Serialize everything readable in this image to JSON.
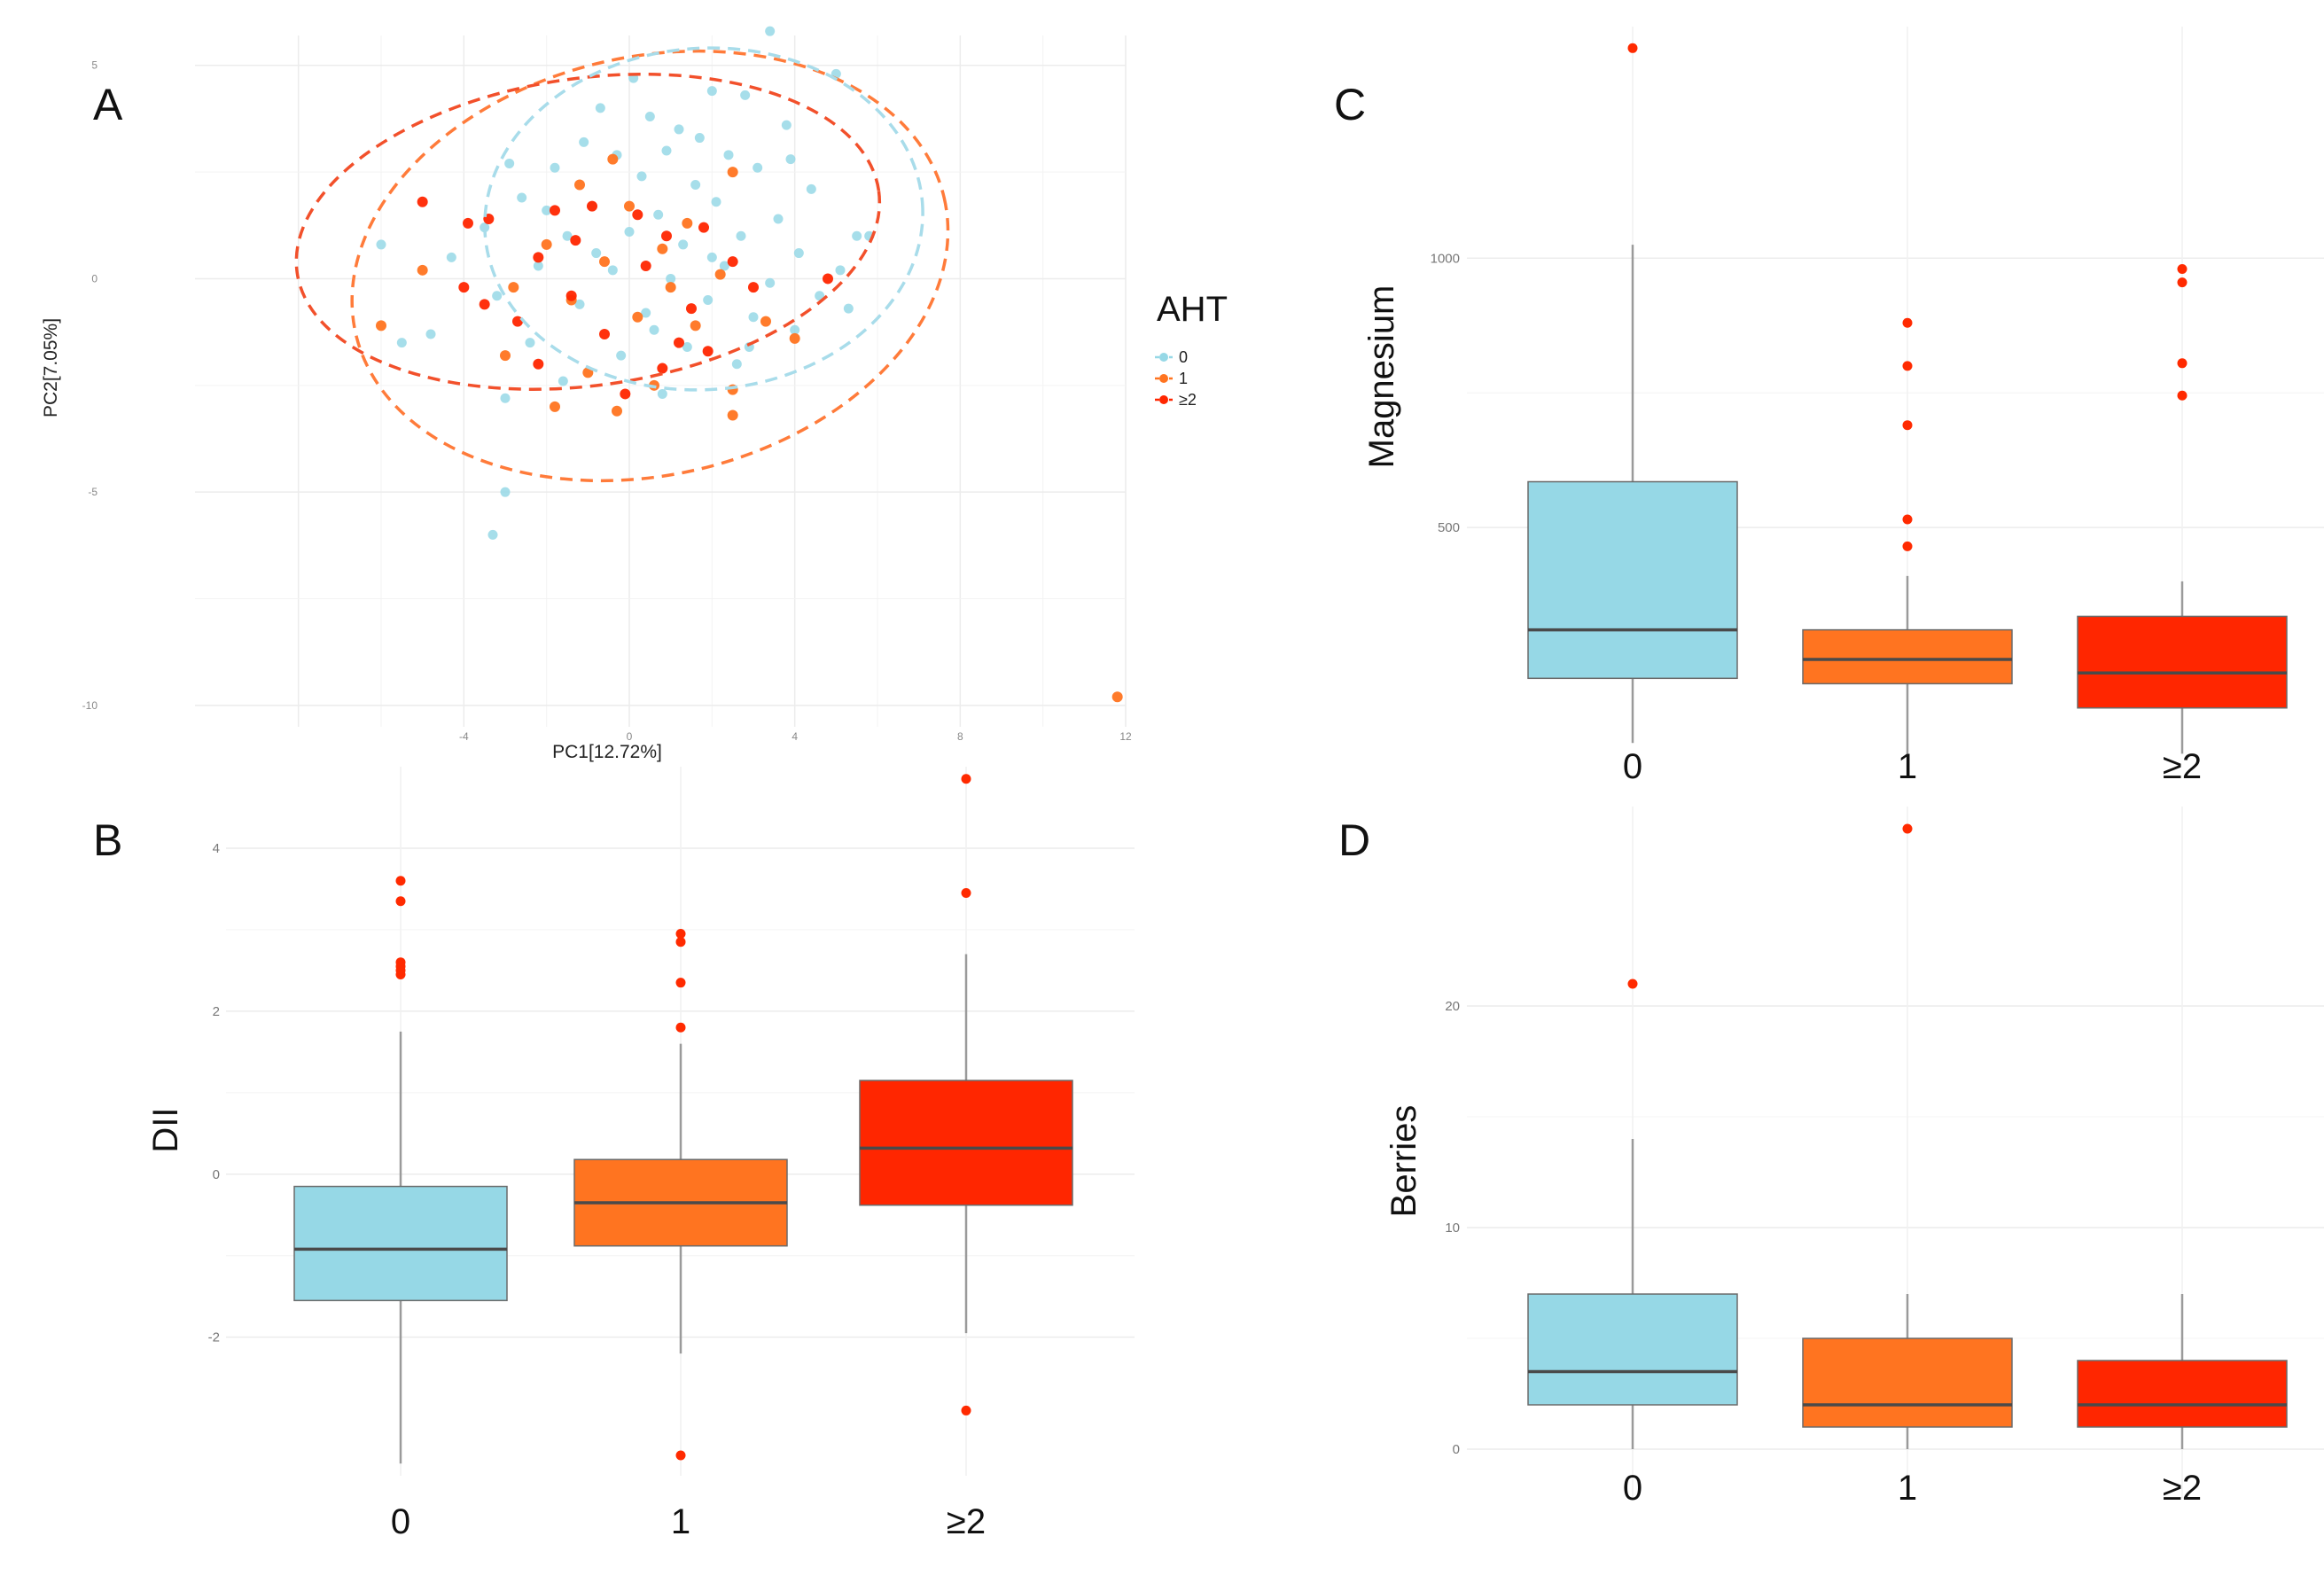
{
  "colors": {
    "g0": "#96d8e6",
    "g1": "#ff7420",
    "g2": "#ff2600",
    "ell1": "#ff7b3a",
    "ell2": "#f2502b",
    "ell0": "#a8dcea",
    "median": "#4a4a4a",
    "grid": "#ececec",
    "whisker": "#9a9a9a",
    "outlier": "#ff2a00"
  },
  "chart_data": [
    {
      "panel": "A",
      "type": "scatter",
      "xlabel": "PC1[12.72%]",
      "ylabel": "PC2[7.05%]",
      "xlim": [
        -10.5,
        12
      ],
      "ylim": [
        -10.5,
        5.7
      ],
      "xticks": [
        -8,
        -4,
        0,
        4,
        8,
        12
      ],
      "xtick_labels": [
        "",
        "-4",
        "0",
        "4",
        "8",
        "12"
      ],
      "yticks": [
        5,
        0,
        -5,
        -10
      ],
      "ytick_labels": [
        "5",
        "0",
        "-5",
        "-10"
      ],
      "legend": {
        "title": "AHT",
        "labels": [
          "0",
          "1",
          "≥2"
        ]
      },
      "ellipses": [
        {
          "group": "1",
          "cx": 0.5,
          "cy": 0.3,
          "rx": 7.3,
          "ry": 4.9,
          "angle_deg": -13
        },
        {
          "group": "≥2",
          "cx": -1.0,
          "cy": 1.1,
          "rx": 7.1,
          "ry": 3.6,
          "angle_deg": -8
        },
        {
          "group": "0",
          "cx": 1.8,
          "cy": 1.4,
          "rx": 5.3,
          "ry": 4.0,
          "angle_deg": -4
        }
      ],
      "points": [
        {
          "x": 3.4,
          "y": 5.8,
          "g": 0
        },
        {
          "x": 5.0,
          "y": 4.8,
          "g": 0
        },
        {
          "x": 0.1,
          "y": 4.7,
          "g": 0
        },
        {
          "x": 2.0,
          "y": 4.4,
          "g": 0
        },
        {
          "x": 2.8,
          "y": 4.3,
          "g": 0
        },
        {
          "x": -0.7,
          "y": 4.0,
          "g": 0
        },
        {
          "x": 0.5,
          "y": 3.8,
          "g": 0
        },
        {
          "x": 1.2,
          "y": 3.5,
          "g": 0
        },
        {
          "x": 3.8,
          "y": 3.6,
          "g": 0
        },
        {
          "x": -1.1,
          "y": 3.2,
          "g": 0
        },
        {
          "x": 0.9,
          "y": 3.0,
          "g": 0
        },
        {
          "x": 2.4,
          "y": 2.9,
          "g": 0
        },
        {
          "x": -1.8,
          "y": 2.6,
          "g": 0
        },
        {
          "x": 0.3,
          "y": 2.4,
          "g": 0
        },
        {
          "x": 1.6,
          "y": 2.2,
          "g": 0
        },
        {
          "x": 3.1,
          "y": 2.6,
          "g": 0
        },
        {
          "x": 4.4,
          "y": 2.1,
          "g": 0
        },
        {
          "x": -2.6,
          "y": 1.9,
          "g": 0
        },
        {
          "x": -0.9,
          "y": 1.7,
          "g": 0
        },
        {
          "x": 0.7,
          "y": 1.5,
          "g": 0
        },
        {
          "x": 2.1,
          "y": 1.8,
          "g": 0
        },
        {
          "x": 3.6,
          "y": 1.4,
          "g": 0
        },
        {
          "x": 5.5,
          "y": 1.0,
          "g": 0
        },
        {
          "x": -3.5,
          "y": 1.2,
          "g": 0
        },
        {
          "x": -1.5,
          "y": 1.0,
          "g": 0
        },
        {
          "x": 0.0,
          "y": 1.1,
          "g": 0
        },
        {
          "x": 1.3,
          "y": 0.8,
          "g": 0
        },
        {
          "x": 2.7,
          "y": 1.0,
          "g": 0
        },
        {
          "x": 4.1,
          "y": 0.6,
          "g": 0
        },
        {
          "x": 5.1,
          "y": 0.2,
          "g": 0
        },
        {
          "x": -4.3,
          "y": 0.5,
          "g": 0
        },
        {
          "x": -2.2,
          "y": 0.3,
          "g": 0
        },
        {
          "x": -0.4,
          "y": 0.2,
          "g": 0
        },
        {
          "x": 1.0,
          "y": 0.0,
          "g": 0
        },
        {
          "x": 2.3,
          "y": 0.3,
          "g": 0
        },
        {
          "x": 3.4,
          "y": -0.1,
          "g": 0
        },
        {
          "x": 4.6,
          "y": -0.4,
          "g": 0
        },
        {
          "x": -3.2,
          "y": -0.4,
          "g": 0
        },
        {
          "x": -1.2,
          "y": -0.6,
          "g": 0
        },
        {
          "x": 0.4,
          "y": -0.8,
          "g": 0
        },
        {
          "x": 1.9,
          "y": -0.5,
          "g": 0
        },
        {
          "x": 3.0,
          "y": -0.9,
          "g": 0
        },
        {
          "x": 4.0,
          "y": -1.2,
          "g": 0
        },
        {
          "x": -4.8,
          "y": -1.3,
          "g": 0
        },
        {
          "x": -2.4,
          "y": -1.5,
          "g": 0
        },
        {
          "x": -0.2,
          "y": -1.8,
          "g": 0
        },
        {
          "x": 1.4,
          "y": -1.6,
          "g": 0
        },
        {
          "x": 2.6,
          "y": -2.0,
          "g": 0
        },
        {
          "x": -1.6,
          "y": -2.4,
          "g": 0
        },
        {
          "x": 0.8,
          "y": -2.7,
          "g": 0
        },
        {
          "x": -3.0,
          "y": -2.8,
          "g": 0
        },
        {
          "x": -6.0,
          "y": 0.8,
          "g": 0
        },
        {
          "x": -5.5,
          "y": -1.5,
          "g": 0
        },
        {
          "x": 5.3,
          "y": -0.7,
          "g": 0
        },
        {
          "x": 1.7,
          "y": 3.3,
          "g": 0
        },
        {
          "x": -0.3,
          "y": 2.9,
          "g": 0
        },
        {
          "x": 2.9,
          "y": -1.6,
          "g": 0
        },
        {
          "x": -2.9,
          "y": 2.7,
          "g": 0
        },
        {
          "x": 3.9,
          "y": 2.8,
          "g": 0
        },
        {
          "x": 0.6,
          "y": -1.2,
          "g": 0
        },
        {
          "x": -3.0,
          "y": -5.0,
          "g": 0
        },
        {
          "x": -3.3,
          "y": -6.0,
          "g": 0
        },
        {
          "x": 5.8,
          "y": 1.0,
          "g": 0
        },
        {
          "x": -0.8,
          "y": 0.6,
          "g": 0
        },
        {
          "x": 2.0,
          "y": 0.5,
          "g": 0
        },
        {
          "x": -2.0,
          "y": 1.6,
          "g": 0
        },
        {
          "x": -1.2,
          "y": 2.2,
          "g": 1
        },
        {
          "x": 0.0,
          "y": 1.7,
          "g": 1
        },
        {
          "x": 1.4,
          "y": 1.3,
          "g": 1
        },
        {
          "x": -2.0,
          "y": 0.8,
          "g": 1
        },
        {
          "x": -0.6,
          "y": 0.4,
          "g": 1
        },
        {
          "x": 0.8,
          "y": 0.7,
          "g": 1
        },
        {
          "x": 2.2,
          "y": 0.1,
          "g": 1
        },
        {
          "x": -2.8,
          "y": -0.2,
          "g": 1
        },
        {
          "x": -1.4,
          "y": -0.5,
          "g": 1
        },
        {
          "x": 0.2,
          "y": -0.9,
          "g": 1
        },
        {
          "x": 1.6,
          "y": -1.1,
          "g": 1
        },
        {
          "x": -3.0,
          "y": -1.8,
          "g": 1
        },
        {
          "x": -1.0,
          "y": -2.2,
          "g": 1
        },
        {
          "x": 0.6,
          "y": -2.5,
          "g": 1
        },
        {
          "x": 2.5,
          "y": -2.6,
          "g": 1
        },
        {
          "x": -1.8,
          "y": -3.0,
          "g": 1
        },
        {
          "x": 4.0,
          "y": -1.4,
          "g": 1
        },
        {
          "x": -5.0,
          "y": 0.2,
          "g": 1
        },
        {
          "x": -6.0,
          "y": -1.1,
          "g": 1
        },
        {
          "x": 2.5,
          "y": 2.5,
          "g": 1
        },
        {
          "x": 3.3,
          "y": -1.0,
          "g": 1
        },
        {
          "x": 2.5,
          "y": -3.2,
          "g": 1
        },
        {
          "x": -0.3,
          "y": -3.1,
          "g": 1
        },
        {
          "x": 11.8,
          "y": -9.8,
          "g": 1
        },
        {
          "x": -0.4,
          "y": 2.8,
          "g": 1
        },
        {
          "x": 1.0,
          "y": -0.2,
          "g": 1
        },
        {
          "x": -5.0,
          "y": 1.8,
          "g": 2
        },
        {
          "x": -3.9,
          "y": 1.3,
          "g": 2
        },
        {
          "x": -3.4,
          "y": 1.4,
          "g": 2
        },
        {
          "x": -1.8,
          "y": 1.6,
          "g": 2
        },
        {
          "x": -0.9,
          "y": 1.7,
          "g": 2
        },
        {
          "x": 0.2,
          "y": 1.5,
          "g": 2
        },
        {
          "x": 1.8,
          "y": 1.2,
          "g": 2
        },
        {
          "x": -2.2,
          "y": 0.5,
          "g": 2
        },
        {
          "x": 0.4,
          "y": 0.3,
          "g": 2
        },
        {
          "x": 2.5,
          "y": 0.4,
          "g": 2
        },
        {
          "x": -4.0,
          "y": -0.2,
          "g": 2
        },
        {
          "x": -1.4,
          "y": -0.4,
          "g": 2
        },
        {
          "x": 1.5,
          "y": -0.7,
          "g": 2
        },
        {
          "x": 3.0,
          "y": -0.2,
          "g": 2
        },
        {
          "x": -3.5,
          "y": -0.6,
          "g": 2
        },
        {
          "x": -0.6,
          "y": -1.3,
          "g": 2
        },
        {
          "x": 1.9,
          "y": -1.7,
          "g": 2
        },
        {
          "x": -2.2,
          "y": -2.0,
          "g": 2
        },
        {
          "x": 0.8,
          "y": -2.1,
          "g": 2
        },
        {
          "x": 4.8,
          "y": 0.0,
          "g": 2
        },
        {
          "x": -0.1,
          "y": -2.7,
          "g": 2
        },
        {
          "x": -1.3,
          "y": 0.9,
          "g": 2
        },
        {
          "x": 0.9,
          "y": 1.0,
          "g": 2
        },
        {
          "x": -2.7,
          "y": -1.0,
          "g": 2
        },
        {
          "x": 1.2,
          "y": -1.5,
          "g": 2
        }
      ]
    },
    {
      "panel": "B",
      "type": "box",
      "ylabel": "DII",
      "categories": [
        "0",
        "1",
        "≥2"
      ],
      "ylim": [
        -3.7,
        5.0
      ],
      "yticks": [
        -2,
        0,
        2,
        4
      ],
      "boxes": [
        {
          "q1": -1.55,
          "median": -0.92,
          "q3": -0.15,
          "low": -3.55,
          "high": 1.75,
          "outliers": [
            3.6,
            3.35,
            2.6,
            2.55,
            2.5,
            2.45
          ]
        },
        {
          "q1": -0.88,
          "median": -0.35,
          "q3": 0.18,
          "low": -2.2,
          "high": 1.6,
          "outliers": [
            2.95,
            2.85,
            2.35,
            1.8,
            -3.45
          ]
        },
        {
          "q1": -0.38,
          "median": 0.32,
          "q3": 1.15,
          "low": -1.95,
          "high": 2.7,
          "outliers": [
            4.85,
            3.45,
            -2.9
          ]
        }
      ]
    },
    {
      "panel": "C",
      "type": "box",
      "ylabel": "Magnesium",
      "categories": [
        "0",
        "1",
        "≥2"
      ],
      "ylim": [
        130,
        1430
      ],
      "yticks": [
        500,
        1000
      ],
      "boxes": [
        {
          "q1": 220,
          "median": 310,
          "q3": 585,
          "low": 100,
          "high": 1025,
          "outliers": [
            1390
          ]
        },
        {
          "q1": 210,
          "median": 255,
          "q3": 310,
          "low": 80,
          "high": 410,
          "outliers": [
            880,
            800,
            690,
            515,
            465
          ]
        },
        {
          "q1": 165,
          "median": 230,
          "q3": 335,
          "low": 80,
          "high": 400,
          "outliers": [
            980,
            955,
            805,
            745
          ]
        }
      ]
    },
    {
      "panel": "D",
      "type": "box",
      "ylabel": "Berries",
      "categories": [
        "0",
        "1",
        "≥2"
      ],
      "ylim": [
        -2.2,
        29.0
      ],
      "yticks": [
        0,
        10,
        20
      ],
      "boxes": [
        {
          "q1": 2.0,
          "median": 3.5,
          "q3": 7.0,
          "low": 0.0,
          "high": 14.0,
          "outliers": [
            21.0
          ]
        },
        {
          "q1": 1.0,
          "median": 2.0,
          "q3": 5.0,
          "low": 0.0,
          "high": 7.0,
          "outliers": [
            28.0
          ]
        },
        {
          "q1": 1.0,
          "median": 2.0,
          "q3": 4.0,
          "low": 0.0,
          "high": 7.0,
          "outliers": []
        }
      ]
    }
  ]
}
